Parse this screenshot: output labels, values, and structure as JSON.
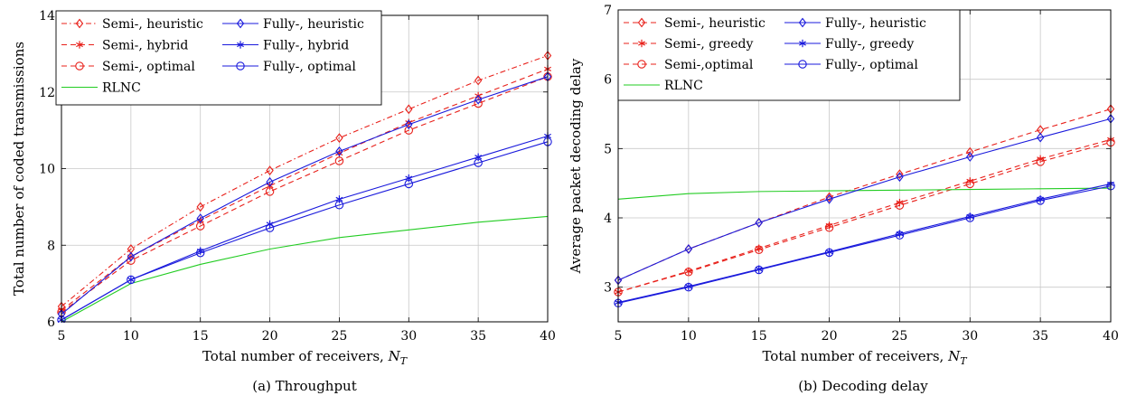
{
  "chart_data": [
    {
      "type": "line",
      "caption": "(a) Throughput",
      "xlabel": "Total number of receivers, ",
      "xlabel_var": "N",
      "xlabel_sub": "T",
      "ylabel": "Total number of coded transmissions",
      "xlim": [
        5,
        40
      ],
      "ylim": [
        6,
        14
      ],
      "xticks": [
        5,
        10,
        15,
        20,
        25,
        30,
        35,
        40
      ],
      "yticks": [
        6,
        8,
        10,
        12,
        14
      ],
      "grid": true,
      "legend_position": "top-left",
      "x": [
        5,
        10,
        15,
        20,
        25,
        30,
        35,
        40
      ],
      "series": [
        {
          "name": "Semi-, heuristic",
          "color": "#e8201a",
          "dash": "dashdot",
          "marker": "diamond",
          "values": [
            6.4,
            7.9,
            9.0,
            9.95,
            10.8,
            11.55,
            12.3,
            12.95
          ]
        },
        {
          "name": "Semi-, hybrid",
          "color": "#e8201a",
          "dash": "dashed",
          "marker": "asterisk",
          "values": [
            6.3,
            7.7,
            8.65,
            9.55,
            10.4,
            11.2,
            11.9,
            12.6
          ]
        },
        {
          "name": "Semi-, optimal",
          "color": "#e8201a",
          "dash": "dashed",
          "marker": "circle",
          "values": [
            6.25,
            7.6,
            8.5,
            9.4,
            10.2,
            11.0,
            11.7,
            12.4
          ]
        },
        {
          "name": "RLNC",
          "color": "#22cc22",
          "dash": "solid",
          "marker": "none",
          "values": [
            6.0,
            7.0,
            7.5,
            7.9,
            8.2,
            8.4,
            8.6,
            8.75
          ]
        },
        {
          "name": "Fully-, heuristic",
          "color": "#1a1adc",
          "dash": "solid",
          "marker": "diamond",
          "values": [
            6.2,
            7.7,
            8.7,
            9.65,
            10.45,
            11.15,
            11.8,
            12.4
          ]
        },
        {
          "name": "Fully-, hybrid",
          "color": "#1a1adc",
          "dash": "solid",
          "marker": "asterisk",
          "values": [
            6.05,
            7.1,
            7.85,
            8.55,
            9.2,
            9.75,
            10.3,
            10.85
          ]
        },
        {
          "name": "Fully-, optimal",
          "color": "#1a1adc",
          "dash": "solid",
          "marker": "circle",
          "values": [
            6.05,
            7.1,
            7.8,
            8.45,
            9.05,
            9.6,
            10.15,
            10.7
          ]
        }
      ]
    },
    {
      "type": "line",
      "caption": "(b) Decoding delay",
      "xlabel": "Total number of receivers, ",
      "xlabel_var": "N",
      "xlabel_sub": "T",
      "ylabel": "Average packet decoding delay",
      "xlim": [
        5,
        40
      ],
      "ylim": [
        2.5,
        7
      ],
      "xticks": [
        5,
        10,
        15,
        20,
        25,
        30,
        35,
        40
      ],
      "yticks": [
        3,
        4,
        5,
        6,
        7
      ],
      "grid": true,
      "legend_position": "top-left",
      "x": [
        5,
        10,
        15,
        20,
        25,
        30,
        35,
        40
      ],
      "series": [
        {
          "name": "Semi-, heuristic",
          "color": "#e8201a",
          "dash": "dashed",
          "marker": "diamond",
          "values": [
            3.1,
            3.55,
            3.93,
            4.3,
            4.63,
            4.95,
            5.27,
            5.57
          ]
        },
        {
          "name": "Semi-, greedy",
          "color": "#e8201a",
          "dash": "dashed",
          "marker": "asterisk",
          "values": [
            2.93,
            3.23,
            3.56,
            3.89,
            4.22,
            4.53,
            4.85,
            5.13
          ]
        },
        {
          "name": "Semi-,optimal",
          "color": "#e8201a",
          "dash": "dashed",
          "marker": "circle",
          "values": [
            2.93,
            3.22,
            3.54,
            3.86,
            4.18,
            4.49,
            4.81,
            5.09
          ]
        },
        {
          "name": "RLNC",
          "color": "#22cc22",
          "dash": "solid",
          "marker": "none",
          "values": [
            4.27,
            4.35,
            4.38,
            4.39,
            4.4,
            4.41,
            4.42,
            4.43
          ]
        },
        {
          "name": "Fully-, heuristic",
          "color": "#1a1adc",
          "dash": "solid",
          "marker": "diamond",
          "values": [
            3.1,
            3.55,
            3.93,
            4.27,
            4.59,
            4.88,
            5.16,
            5.43
          ]
        },
        {
          "name": "Fully-, greedy",
          "color": "#1a1adc",
          "dash": "solid",
          "marker": "asterisk",
          "values": [
            2.78,
            3.01,
            3.26,
            3.51,
            3.77,
            4.02,
            4.27,
            4.49
          ]
        },
        {
          "name": "Fully-, optimal",
          "color": "#1a1adc",
          "dash": "solid",
          "marker": "circle",
          "values": [
            2.77,
            3.0,
            3.25,
            3.5,
            3.75,
            4.0,
            4.25,
            4.46
          ]
        }
      ]
    }
  ]
}
